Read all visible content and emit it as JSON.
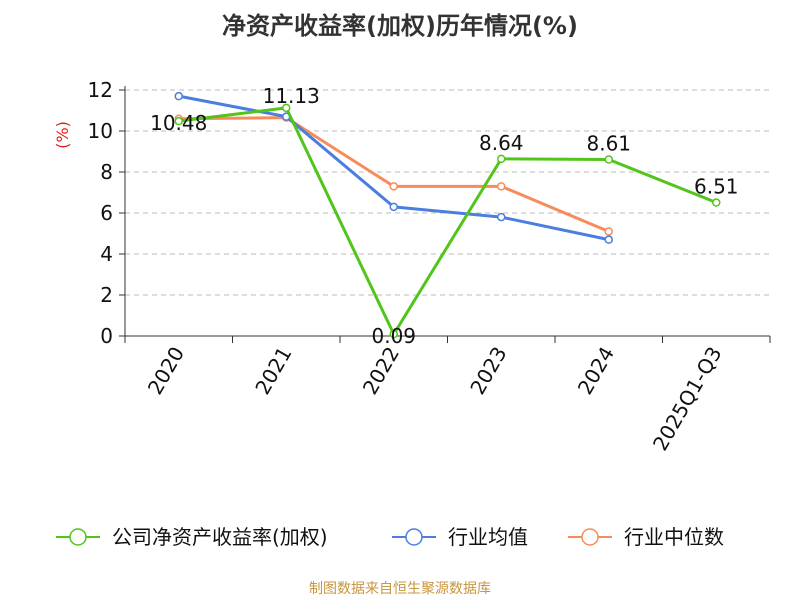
{
  "chart_data": {
    "type": "line",
    "title": "净资产收益率(加权)历年情况(%)",
    "ylabel": "(%)",
    "xlabel": "",
    "categories": [
      "2020",
      "2021",
      "2022",
      "2023",
      "2024",
      "2025Q1-Q3"
    ],
    "ylim": [
      0,
      12
    ],
    "yticks": [
      0,
      2,
      4,
      6,
      8,
      10,
      12
    ],
    "grid": true,
    "legend_position": "bottom",
    "series": [
      {
        "name": "公司净资产收益率(加权)",
        "color": "#52c41a",
        "values": [
          10.48,
          11.13,
          0.09,
          8.64,
          8.61,
          6.51
        ],
        "labels": [
          "10.48",
          "11.13",
          "0.09",
          "8.64",
          "8.61",
          "6.51"
        ]
      },
      {
        "name": "行业均值",
        "color": "#4a7ee0",
        "values": [
          11.7,
          10.7,
          6.3,
          5.8,
          4.7,
          null
        ]
      },
      {
        "name": "行业中位数",
        "color": "#f78c5a",
        "values": [
          10.6,
          10.65,
          7.3,
          7.3,
          5.1,
          null
        ]
      }
    ]
  },
  "source": {
    "text": "制图数据来自恒生聚源数据库",
    "color": "#c8963c"
  },
  "colors": {
    "axis_label": "#e02020",
    "grid": "#bbbbbb",
    "axis": "#333333",
    "text": "#111111"
  }
}
